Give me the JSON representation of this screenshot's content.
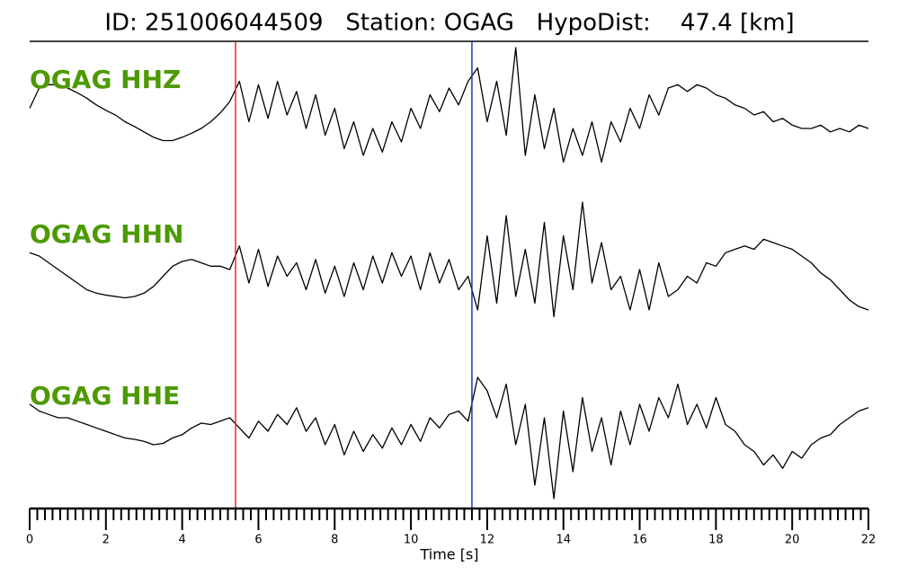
{
  "chart_data": {
    "type": "line",
    "title": "ID: 251006044509   Station: OGAG   HypoDist:    47.4 [km]",
    "xlabel": "Time [s]",
    "xlim": [
      0,
      22
    ],
    "xticks": [
      0,
      2,
      4,
      6,
      8,
      10,
      12,
      14,
      16,
      18,
      20,
      22
    ],
    "xminor_divisions": 10,
    "ylim": [
      -1,
      1
    ],
    "markers": [
      {
        "x": 5.4,
        "color": "#e8262b"
      },
      {
        "x": 11.6,
        "color": "#2233bb"
      }
    ],
    "label_color": "#4d9a00",
    "x": [
      0,
      0.25,
      0.5,
      0.75,
      1,
      1.25,
      1.5,
      1.75,
      2,
      2.25,
      2.5,
      2.75,
      3,
      3.25,
      3.5,
      3.75,
      4,
      4.25,
      4.5,
      4.75,
      5,
      5.25,
      5.5,
      5.75,
      6,
      6.25,
      6.5,
      6.75,
      7,
      7.25,
      7.5,
      7.75,
      8,
      8.25,
      8.5,
      8.75,
      9,
      9.25,
      9.5,
      9.75,
      10,
      10.25,
      10.5,
      10.75,
      11,
      11.25,
      11.5,
      11.75,
      12,
      12.25,
      12.5,
      12.75,
      13,
      13.25,
      13.5,
      13.75,
      14,
      14.25,
      14.5,
      14.75,
      15,
      15.25,
      15.5,
      15.75,
      16,
      16.25,
      16.5,
      16.75,
      17,
      17.25,
      17.5,
      17.75,
      18,
      18.25,
      18.5,
      18.75,
      19,
      19.25,
      19.5,
      19.75,
      20,
      20.25,
      20.5,
      20.75,
      21,
      21.25,
      21.5,
      21.75,
      22
    ],
    "series": [
      {
        "name": "OGAG HHZ",
        "color": "#000000",
        "values": [
          0.1,
          0.4,
          0.45,
          0.45,
          0.4,
          0.33,
          0.25,
          0.15,
          0.07,
          0,
          -0.1,
          -0.17,
          -0.25,
          -0.33,
          -0.38,
          -0.38,
          -0.33,
          -0.27,
          -0.2,
          -0.1,
          0.03,
          0.2,
          0.5,
          -0.1,
          0.45,
          -0.05,
          0.5,
          0,
          0.35,
          -0.2,
          0.3,
          -0.3,
          0.1,
          -0.5,
          -0.1,
          -0.6,
          -0.2,
          -0.55,
          -0.1,
          -0.4,
          0.1,
          -0.2,
          0.3,
          0.05,
          0.4,
          0.15,
          0.5,
          0.7,
          -0.1,
          0.5,
          -0.3,
          1.0,
          -0.6,
          0.3,
          -0.5,
          0.1,
          -0.7,
          -0.2,
          -0.6,
          -0.1,
          -0.7,
          -0.1,
          -0.4,
          0.1,
          -0.2,
          0.3,
          0,
          0.4,
          0.45,
          0.35,
          0.45,
          0.4,
          0.3,
          0.25,
          0.15,
          0.1,
          0,
          0.05,
          -0.1,
          -0.05,
          -0.15,
          -0.2,
          -0.2,
          -0.15,
          -0.25,
          -0.2,
          -0.25,
          -0.15,
          -0.2
        ]
      },
      {
        "name": "OGAG HHN",
        "color": "#000000",
        "values": [
          0.25,
          0.2,
          0.1,
          0,
          -0.1,
          -0.2,
          -0.3,
          -0.35,
          -0.38,
          -0.4,
          -0.42,
          -0.4,
          -0.35,
          -0.25,
          -0.1,
          0.05,
          0.12,
          0.15,
          0.1,
          0.05,
          0.05,
          0.0,
          0.35,
          -0.2,
          0.3,
          -0.25,
          0.2,
          -0.1,
          0.1,
          -0.3,
          0.15,
          -0.35,
          0.05,
          -0.4,
          0.1,
          -0.3,
          0.2,
          -0.2,
          0.25,
          -0.1,
          0.2,
          -0.3,
          0.25,
          -0.2,
          0.15,
          -0.3,
          -0.1,
          -0.6,
          0.5,
          -0.5,
          0.8,
          -0.4,
          0.3,
          -0.5,
          0.7,
          -0.7,
          0.5,
          -0.3,
          1.0,
          -0.2,
          0.4,
          -0.3,
          -0.1,
          -0.6,
          0.0,
          -0.6,
          0.1,
          -0.4,
          -0.3,
          -0.1,
          -0.2,
          0.1,
          0.05,
          0.25,
          0.3,
          0.35,
          0.3,
          0.45,
          0.4,
          0.35,
          0.3,
          0.2,
          0.1,
          -0.05,
          -0.15,
          -0.3,
          -0.45,
          -0.55,
          -0.6
        ]
      },
      {
        "name": "OGAG HHE",
        "color": "#000000",
        "values": [
          0.4,
          0.3,
          0.25,
          0.2,
          0.2,
          0.15,
          0.1,
          0.05,
          0,
          -0.05,
          -0.1,
          -0.12,
          -0.15,
          -0.2,
          -0.18,
          -0.1,
          -0.05,
          0.05,
          0.12,
          0.1,
          0.15,
          0.2,
          0.05,
          -0.1,
          0.15,
          0.0,
          0.25,
          0.1,
          0.35,
          0.0,
          0.2,
          -0.2,
          0.1,
          -0.35,
          0.0,
          -0.3,
          -0.05,
          -0.25,
          0.05,
          -0.2,
          0.1,
          -0.15,
          0.2,
          0.05,
          0.25,
          0.3,
          0.15,
          0.8,
          0.6,
          0.2,
          0.7,
          -0.2,
          0.4,
          -0.8,
          0.2,
          -1.0,
          0.3,
          -0.6,
          0.5,
          -0.3,
          0.2,
          -0.5,
          0.3,
          -0.2,
          0.4,
          0.0,
          0.5,
          0.2,
          0.7,
          0.1,
          0.4,
          0.05,
          0.5,
          0.1,
          0.0,
          -0.2,
          -0.3,
          -0.5,
          -0.35,
          -0.55,
          -0.3,
          -0.4,
          -0.2,
          -0.1,
          -0.05,
          0.1,
          0.2,
          0.3,
          0.35
        ]
      }
    ]
  }
}
